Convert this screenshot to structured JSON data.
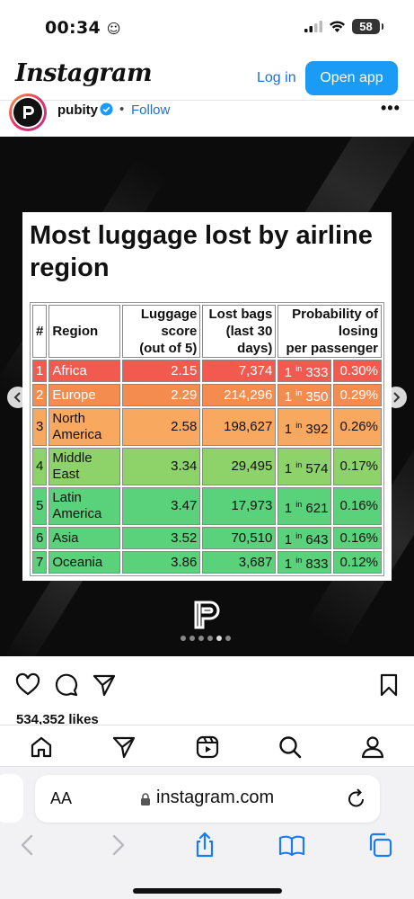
{
  "status_bar": {
    "time": "00:34",
    "battery": "58"
  },
  "header": {
    "logo": "Instagram",
    "login": "Log in",
    "open_app": "Open app"
  },
  "post": {
    "username": "pubity",
    "separator": "•",
    "follow": "Follow",
    "more": "•••",
    "likes": "534,352 likes"
  },
  "card": {
    "title": "Most luggage lost by airline region",
    "columns": {
      "num": "#",
      "region": "Region",
      "score": [
        "Luggage",
        "score",
        "(out of 5)"
      ],
      "bags": [
        "Lost bags",
        "(last 30",
        "days)"
      ],
      "prob": [
        "Probability of",
        "losing",
        "per passenger"
      ]
    },
    "rows": [
      {
        "num": "1",
        "region": "Africa",
        "score": "2.15",
        "bags": "7,374",
        "odds_prefix": "1",
        "odds_in": "in",
        "odds": "333",
        "pct": "0.30%"
      },
      {
        "num": "2",
        "region": "Europe",
        "score": "2.29",
        "bags": "214,296",
        "odds_prefix": "1",
        "odds_in": "in",
        "odds": "350",
        "pct": "0.29%"
      },
      {
        "num": "3",
        "region": "North America",
        "score": "2.58",
        "bags": "198,627",
        "odds_prefix": "1",
        "odds_in": "in",
        "odds": "392",
        "pct": "0.26%"
      },
      {
        "num": "4",
        "region": "Middle East",
        "score": "3.34",
        "bags": "29,495",
        "odds_prefix": "1",
        "odds_in": "in",
        "odds": "574",
        "pct": "0.17%"
      },
      {
        "num": "5",
        "region": "Latin America",
        "score": "3.47",
        "bags": "17,973",
        "odds_prefix": "1",
        "odds_in": "in",
        "odds": "621",
        "pct": "0.16%"
      },
      {
        "num": "6",
        "region": "Asia",
        "score": "3.52",
        "bags": "70,510",
        "odds_prefix": "1",
        "odds_in": "in",
        "odds": "643",
        "pct": "0.16%"
      },
      {
        "num": "7",
        "region": "Oceania",
        "score": "3.86",
        "bags": "3,687",
        "odds_prefix": "1",
        "odds_in": "in",
        "odds": "833",
        "pct": "0.12%"
      }
    ]
  },
  "carousel": {
    "count": 6,
    "active": 4
  },
  "browser": {
    "text_size": "AA",
    "url": "instagram.com"
  },
  "colors": {
    "accent": "#1a9bf5",
    "link": "#1f6fd0",
    "row_red": "#f25a4f",
    "row_orange": "#f58c4f",
    "row_light_orange": "#f9a860",
    "row_light_green": "#8ed36a",
    "row_green": "#5ad17b"
  },
  "icons": [
    "heart-icon",
    "comment-icon",
    "share-icon",
    "bookmark-icon",
    "home-icon",
    "explore-icon",
    "reels-icon",
    "search-icon",
    "profile-icon",
    "lock-icon",
    "reload-icon",
    "back-icon",
    "forward-icon",
    "share-sheet-icon",
    "bookmarks-icon",
    "tabs-icon"
  ]
}
